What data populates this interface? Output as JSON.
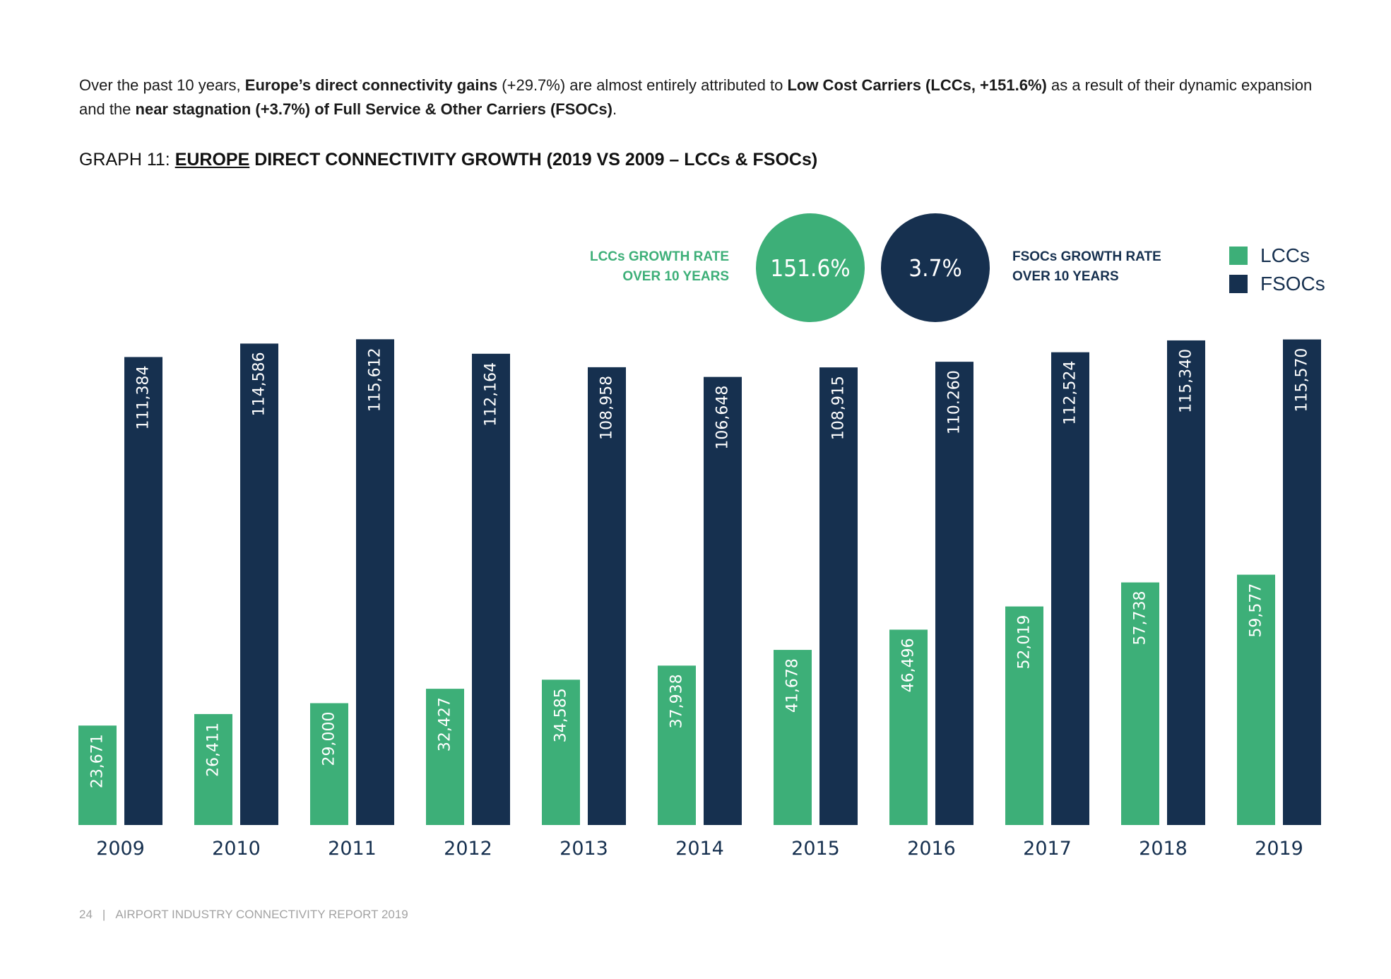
{
  "intro": {
    "t1": "Over the past 10 years, ",
    "b1": "Europe’s direct connectivity gains",
    "t2": " (+29.7%) are almost entirely attributed to ",
    "b2": "Low Cost Carriers (LCCs, +151.6%)",
    "t3": " as a result of their dynamic expansion and the ",
    "b3": "near stagnation (+3.7%) of Full Service & Other Carriers (FSOCs)",
    "t4": "."
  },
  "graph_title": {
    "prefix": "GRAPH 11: ",
    "underlined": "EUROPE",
    "rest": " DIRECT CONNECTIVITY GROWTH (2019 VS 2009 – LCCs & FSOCs)"
  },
  "growth": {
    "lcc_label_line1": "LCCs GROWTH RATE",
    "lcc_label_line2": "OVER 10 YEARS",
    "lcc_value": "151.6%",
    "fsoc_value": "3.7%",
    "fsoc_label_line1": "FSOCs GROWTH RATE",
    "fsoc_label_line2": "OVER 10 YEARS"
  },
  "legend": {
    "lcc": "LCCs",
    "fsoc": "FSOCs"
  },
  "colors": {
    "lcc": "#3daf78",
    "fsoc": "#16304f"
  },
  "chart_data": {
    "type": "bar",
    "title": "GRAPH 11: EUROPE DIRECT CONNECTIVITY GROWTH (2019 VS 2009 – LCCs & FSOCs)",
    "xlabel": "",
    "ylabel": "",
    "grid": false,
    "legend_position": "top-right",
    "categories": [
      "2009",
      "2010",
      "2011",
      "2012",
      "2013",
      "2014",
      "2015",
      "2016",
      "2017",
      "2018",
      "2019"
    ],
    "ylim": [
      0,
      116000
    ],
    "series": [
      {
        "name": "LCCs",
        "values": [
          23671,
          26411,
          29000,
          32427,
          34585,
          37938,
          41678,
          46496,
          52019,
          57738,
          59577
        ],
        "labels": [
          "23,671",
          "26,411",
          "29,000",
          "32,427",
          "34,585",
          "37,938",
          "41,678",
          "46,496",
          "52,019",
          "57,738",
          "59,577"
        ]
      },
      {
        "name": "FSOCs",
        "values": [
          111384,
          114586,
          115612,
          112164,
          108958,
          106648,
          108915,
          110260,
          112524,
          115340,
          115570
        ],
        "labels": [
          "111,384",
          "114,586",
          "115,612",
          "112,164",
          "108,958",
          "106,648",
          "108,915",
          "110.260",
          "112,524",
          "115,340",
          "115,570"
        ]
      }
    ]
  },
  "footer": {
    "page": "24",
    "separator": "|",
    "report": "AIRPORT INDUSTRY CONNECTIVITY REPORT 2019"
  }
}
